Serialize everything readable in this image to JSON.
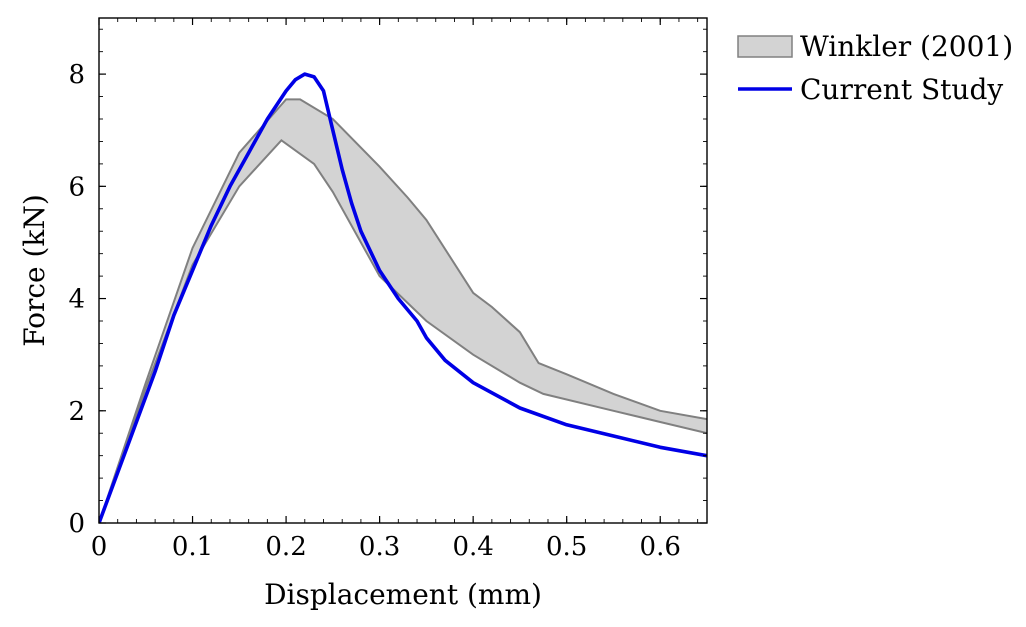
{
  "chart_data": {
    "type": "line",
    "title": "",
    "xlabel": "Displacement (mm)",
    "ylabel": "Force (kN)",
    "xlim": [
      0,
      0.65
    ],
    "ylim": [
      0,
      9
    ],
    "x_ticks": [
      0,
      0.1,
      0.2,
      0.3,
      0.4,
      0.5,
      0.6
    ],
    "x_tick_labels": [
      "0",
      "0.1",
      "0.2",
      "0.3",
      "0.4",
      "0.5",
      "0.6"
    ],
    "y_ticks": [
      0,
      2,
      4,
      6,
      8
    ],
    "y_tick_labels": [
      "0",
      "2",
      "4",
      "6",
      "8"
    ],
    "grid": false,
    "legend_position": "outside-top-right",
    "colors": {
      "band_fill": "#d3d3d3",
      "band_edge": "#808080",
      "line": "#0000e6"
    },
    "series": [
      {
        "name": "Winkler (2001)",
        "kind": "band",
        "upper": [
          [
            0.0,
            0.0
          ],
          [
            0.05,
            2.5
          ],
          [
            0.1,
            4.9
          ],
          [
            0.15,
            6.6
          ],
          [
            0.2,
            7.55
          ],
          [
            0.215,
            7.55
          ],
          [
            0.25,
            7.2
          ],
          [
            0.3,
            6.35
          ],
          [
            0.33,
            5.8
          ],
          [
            0.35,
            5.4
          ],
          [
            0.4,
            4.1
          ],
          [
            0.42,
            3.85
          ],
          [
            0.45,
            3.4
          ],
          [
            0.47,
            2.85
          ],
          [
            0.5,
            2.65
          ],
          [
            0.55,
            2.3
          ],
          [
            0.6,
            2.0
          ],
          [
            0.65,
            1.85
          ]
        ],
        "lower": [
          [
            0.0,
            0.0
          ],
          [
            0.05,
            2.4
          ],
          [
            0.1,
            4.6
          ],
          [
            0.15,
            6.0
          ],
          [
            0.195,
            6.82
          ],
          [
            0.23,
            6.4
          ],
          [
            0.25,
            5.9
          ],
          [
            0.3,
            4.4
          ],
          [
            0.35,
            3.6
          ],
          [
            0.4,
            3.0
          ],
          [
            0.45,
            2.5
          ],
          [
            0.475,
            2.3
          ],
          [
            0.55,
            2.0
          ],
          [
            0.6,
            1.8
          ],
          [
            0.65,
            1.6
          ]
        ]
      },
      {
        "name": "Current Study",
        "kind": "line",
        "points": [
          [
            0.0,
            0.0
          ],
          [
            0.02,
            0.9
          ],
          [
            0.04,
            1.8
          ],
          [
            0.06,
            2.7
          ],
          [
            0.08,
            3.7
          ],
          [
            0.1,
            4.5
          ],
          [
            0.12,
            5.3
          ],
          [
            0.14,
            6.0
          ],
          [
            0.16,
            6.6
          ],
          [
            0.18,
            7.2
          ],
          [
            0.2,
            7.7
          ],
          [
            0.21,
            7.9
          ],
          [
            0.22,
            8.0
          ],
          [
            0.23,
            7.95
          ],
          [
            0.24,
            7.7
          ],
          [
            0.25,
            7.0
          ],
          [
            0.26,
            6.3
          ],
          [
            0.27,
            5.7
          ],
          [
            0.28,
            5.2
          ],
          [
            0.3,
            4.5
          ],
          [
            0.32,
            4.0
          ],
          [
            0.34,
            3.6
          ],
          [
            0.35,
            3.3
          ],
          [
            0.37,
            2.9
          ],
          [
            0.4,
            2.5
          ],
          [
            0.45,
            2.05
          ],
          [
            0.5,
            1.75
          ],
          [
            0.55,
            1.55
          ],
          [
            0.6,
            1.35
          ],
          [
            0.65,
            1.2
          ]
        ]
      }
    ]
  }
}
